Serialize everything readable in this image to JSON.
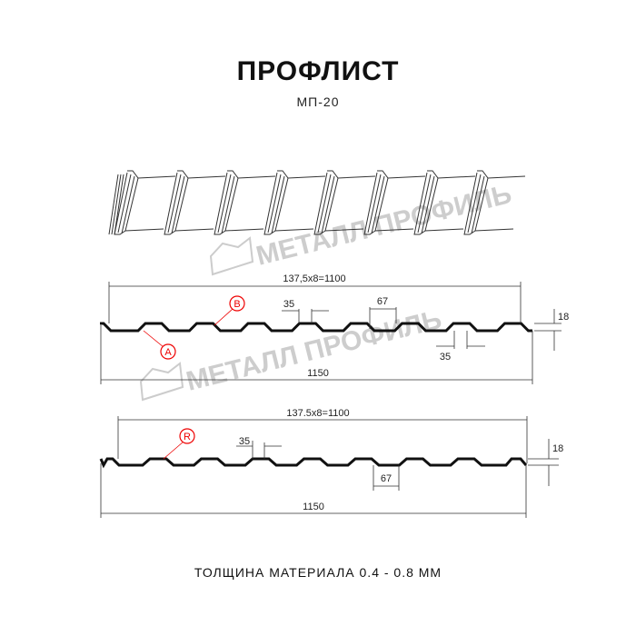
{
  "header": {
    "title": "ПРОФЛИСТ",
    "subtitle": "МП-20"
  },
  "watermark": {
    "text": "МЕТАЛЛ ПРОФИЛЬ",
    "color": "#b8b8b8"
  },
  "profile_a": {
    "pitch_label": "137,5x8=1100",
    "width_label": "1150",
    "crest_label": "35",
    "trough_label": "35",
    "spacing_label": "67",
    "height_label": "18",
    "markers": [
      "B",
      "A"
    ]
  },
  "profile_b": {
    "pitch_label": "137.5x8=1100",
    "width_label": "1150",
    "crest_label": "35",
    "spacing_label": "67",
    "height_label": "18",
    "markers": [
      "R"
    ]
  },
  "footer": {
    "thickness": "ТОЛЩИНА МАТЕРИАЛА 0.4 - 0.8 ММ"
  },
  "colors": {
    "marker": "#e00000",
    "profile": "#111111"
  }
}
